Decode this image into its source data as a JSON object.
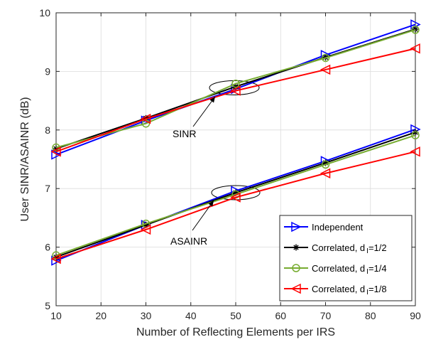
{
  "chart_data": {
    "type": "line",
    "xlabel": "Number of Reflecting Elements per IRS",
    "ylabel": "User SINR/ASAINR (dB)",
    "xlim": [
      10,
      90
    ],
    "ylim": [
      5,
      10
    ],
    "xticks": [
      10,
      20,
      30,
      40,
      50,
      60,
      70,
      80,
      90
    ],
    "yticks": [
      5,
      6,
      7,
      8,
      9,
      10
    ],
    "grid": true,
    "legend_position": "bottom-right",
    "x": [
      10,
      30,
      50,
      70,
      90
    ],
    "annotations": [
      {
        "text": "SINR",
        "at": [
          50,
          8.72
        ]
      },
      {
        "text": "ASAINR",
        "at": [
          50,
          6.93
        ]
      }
    ],
    "series": [
      {
        "name": "Independent",
        "legend_main": "Independent",
        "legend_sub": "",
        "legend_tail": "",
        "color": "#0000ff",
        "marker": "triangle-right",
        "SINR": [
          7.58,
          8.16,
          8.7,
          9.28,
          9.8
        ],
        "ASAINR": [
          5.77,
          6.38,
          6.96,
          7.47,
          8.01
        ]
      },
      {
        "name": "Correlated, d_I=1/2",
        "legend_main": "Correlated, d",
        "legend_sub": "I",
        "legend_tail": "=1/2",
        "color": "#000000",
        "marker": "asterisk",
        "SINR": [
          7.68,
          8.2,
          8.74,
          9.24,
          9.72
        ],
        "ASAINR": [
          5.83,
          6.38,
          6.93,
          7.44,
          7.96
        ]
      },
      {
        "name": "Correlated, d_I=1/4",
        "legend_main": "Correlated, d",
        "legend_sub": "I",
        "legend_tail": "=1/4",
        "color": "#77ac30",
        "marker": "circle",
        "SINR": [
          7.7,
          8.11,
          8.79,
          9.23,
          9.71
        ],
        "ASAINR": [
          5.86,
          6.4,
          6.9,
          7.41,
          7.91
        ]
      },
      {
        "name": "Correlated, d_I=1/8",
        "legend_main": "Correlated, d",
        "legend_sub": "I",
        "legend_tail": "=1/8",
        "color": "#ff0000",
        "marker": "triangle-left",
        "SINR": [
          7.63,
          8.19,
          8.67,
          9.03,
          9.39
        ],
        "ASAINR": [
          5.8,
          6.3,
          6.85,
          7.26,
          7.63
        ]
      }
    ]
  }
}
